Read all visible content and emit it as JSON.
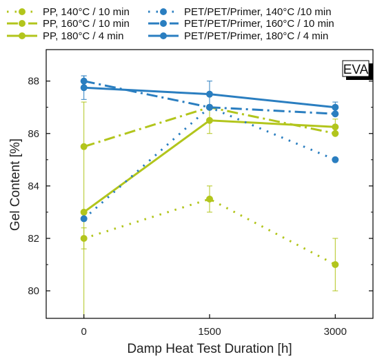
{
  "chart_data": {
    "type": "line",
    "xlabel": "Damp Heat Test Duration [h]",
    "ylabel": "Gel Content [%]",
    "x": [
      0,
      1500,
      3000
    ],
    "x_tick_labels": [
      "0",
      "1500",
      "3000"
    ],
    "y_ticks": [
      80,
      82,
      84,
      86,
      88
    ],
    "y_tick_labels": [
      "80",
      "82",
      "84",
      "86",
      "88"
    ],
    "xlim": [
      -450,
      3450
    ],
    "ylim": [
      78.95,
      89.2
    ],
    "grid": false,
    "legend_position": "top",
    "panel_label": "EVA",
    "series": [
      {
        "name": "PP, 140°C / 10 min",
        "color": "#b2c51c",
        "style": "dotted",
        "values": [
          82.0,
          83.5,
          81.0
        ],
        "error": [
          0.4,
          0.5,
          1.0
        ]
      },
      {
        "name": "PP, 160°C / 10 min",
        "color": "#b2c51c",
        "style": "dashdot",
        "values": [
          85.5,
          87.0,
          86.0
        ],
        "error": [
          0.0,
          0.0,
          0.0
        ]
      },
      {
        "name": "PP, 180°C / 4 min",
        "color": "#b2c51c",
        "style": "solid",
        "values": [
          83.0,
          86.5,
          86.25
        ],
        "error": [
          4.2,
          0.5,
          0.3
        ]
      },
      {
        "name": "PET/PET/Primer, 140°C /10 min",
        "color": "#2a7ec0",
        "style": "dotted",
        "values": [
          82.75,
          87.0,
          85.0
        ],
        "error": [
          0.0,
          0.0,
          0.0
        ]
      },
      {
        "name": "PET/PET/Primer, 160°C / 10 min",
        "color": "#2a7ec0",
        "style": "dashdot",
        "values": [
          88.0,
          87.0,
          86.75
        ],
        "error": [
          0.2,
          0.0,
          0.0
        ]
      },
      {
        "name": "PET/PET/Primer, 180°C / 4 min",
        "color": "#2a7ec0",
        "style": "solid",
        "values": [
          87.75,
          87.5,
          87.0
        ],
        "error": [
          0.45,
          0.5,
          0.2
        ]
      }
    ]
  }
}
